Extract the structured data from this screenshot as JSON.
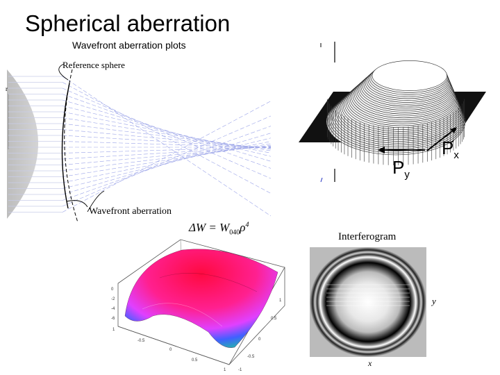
{
  "slide": {
    "title": "Spherical aberration",
    "subtitle": "Wavefront aberration plots"
  },
  "ray_diagram": {
    "reference_label": "Reference sphere",
    "wavefront_label": "Wavefront aberration",
    "colors": {
      "lens": "#c8c8c8",
      "rays": "#9aa3e8",
      "wavefront": "#000000"
    }
  },
  "wavefront_3d": {
    "px_label": "P",
    "px_sub": "x",
    "py_label": "P",
    "py_sub": "y"
  },
  "equation": {
    "lhs": "ΔW = W",
    "subscript": "040",
    "rhs": "ρ",
    "power": "4"
  },
  "surface_plot": {
    "colors": {
      "top": "#ff1060",
      "mid": "#ff30ff",
      "low": "#3050ff",
      "base": "#20c060"
    }
  },
  "interferogram": {
    "title": "Interferogram",
    "x_axis": "x",
    "y_axis": "y"
  }
}
